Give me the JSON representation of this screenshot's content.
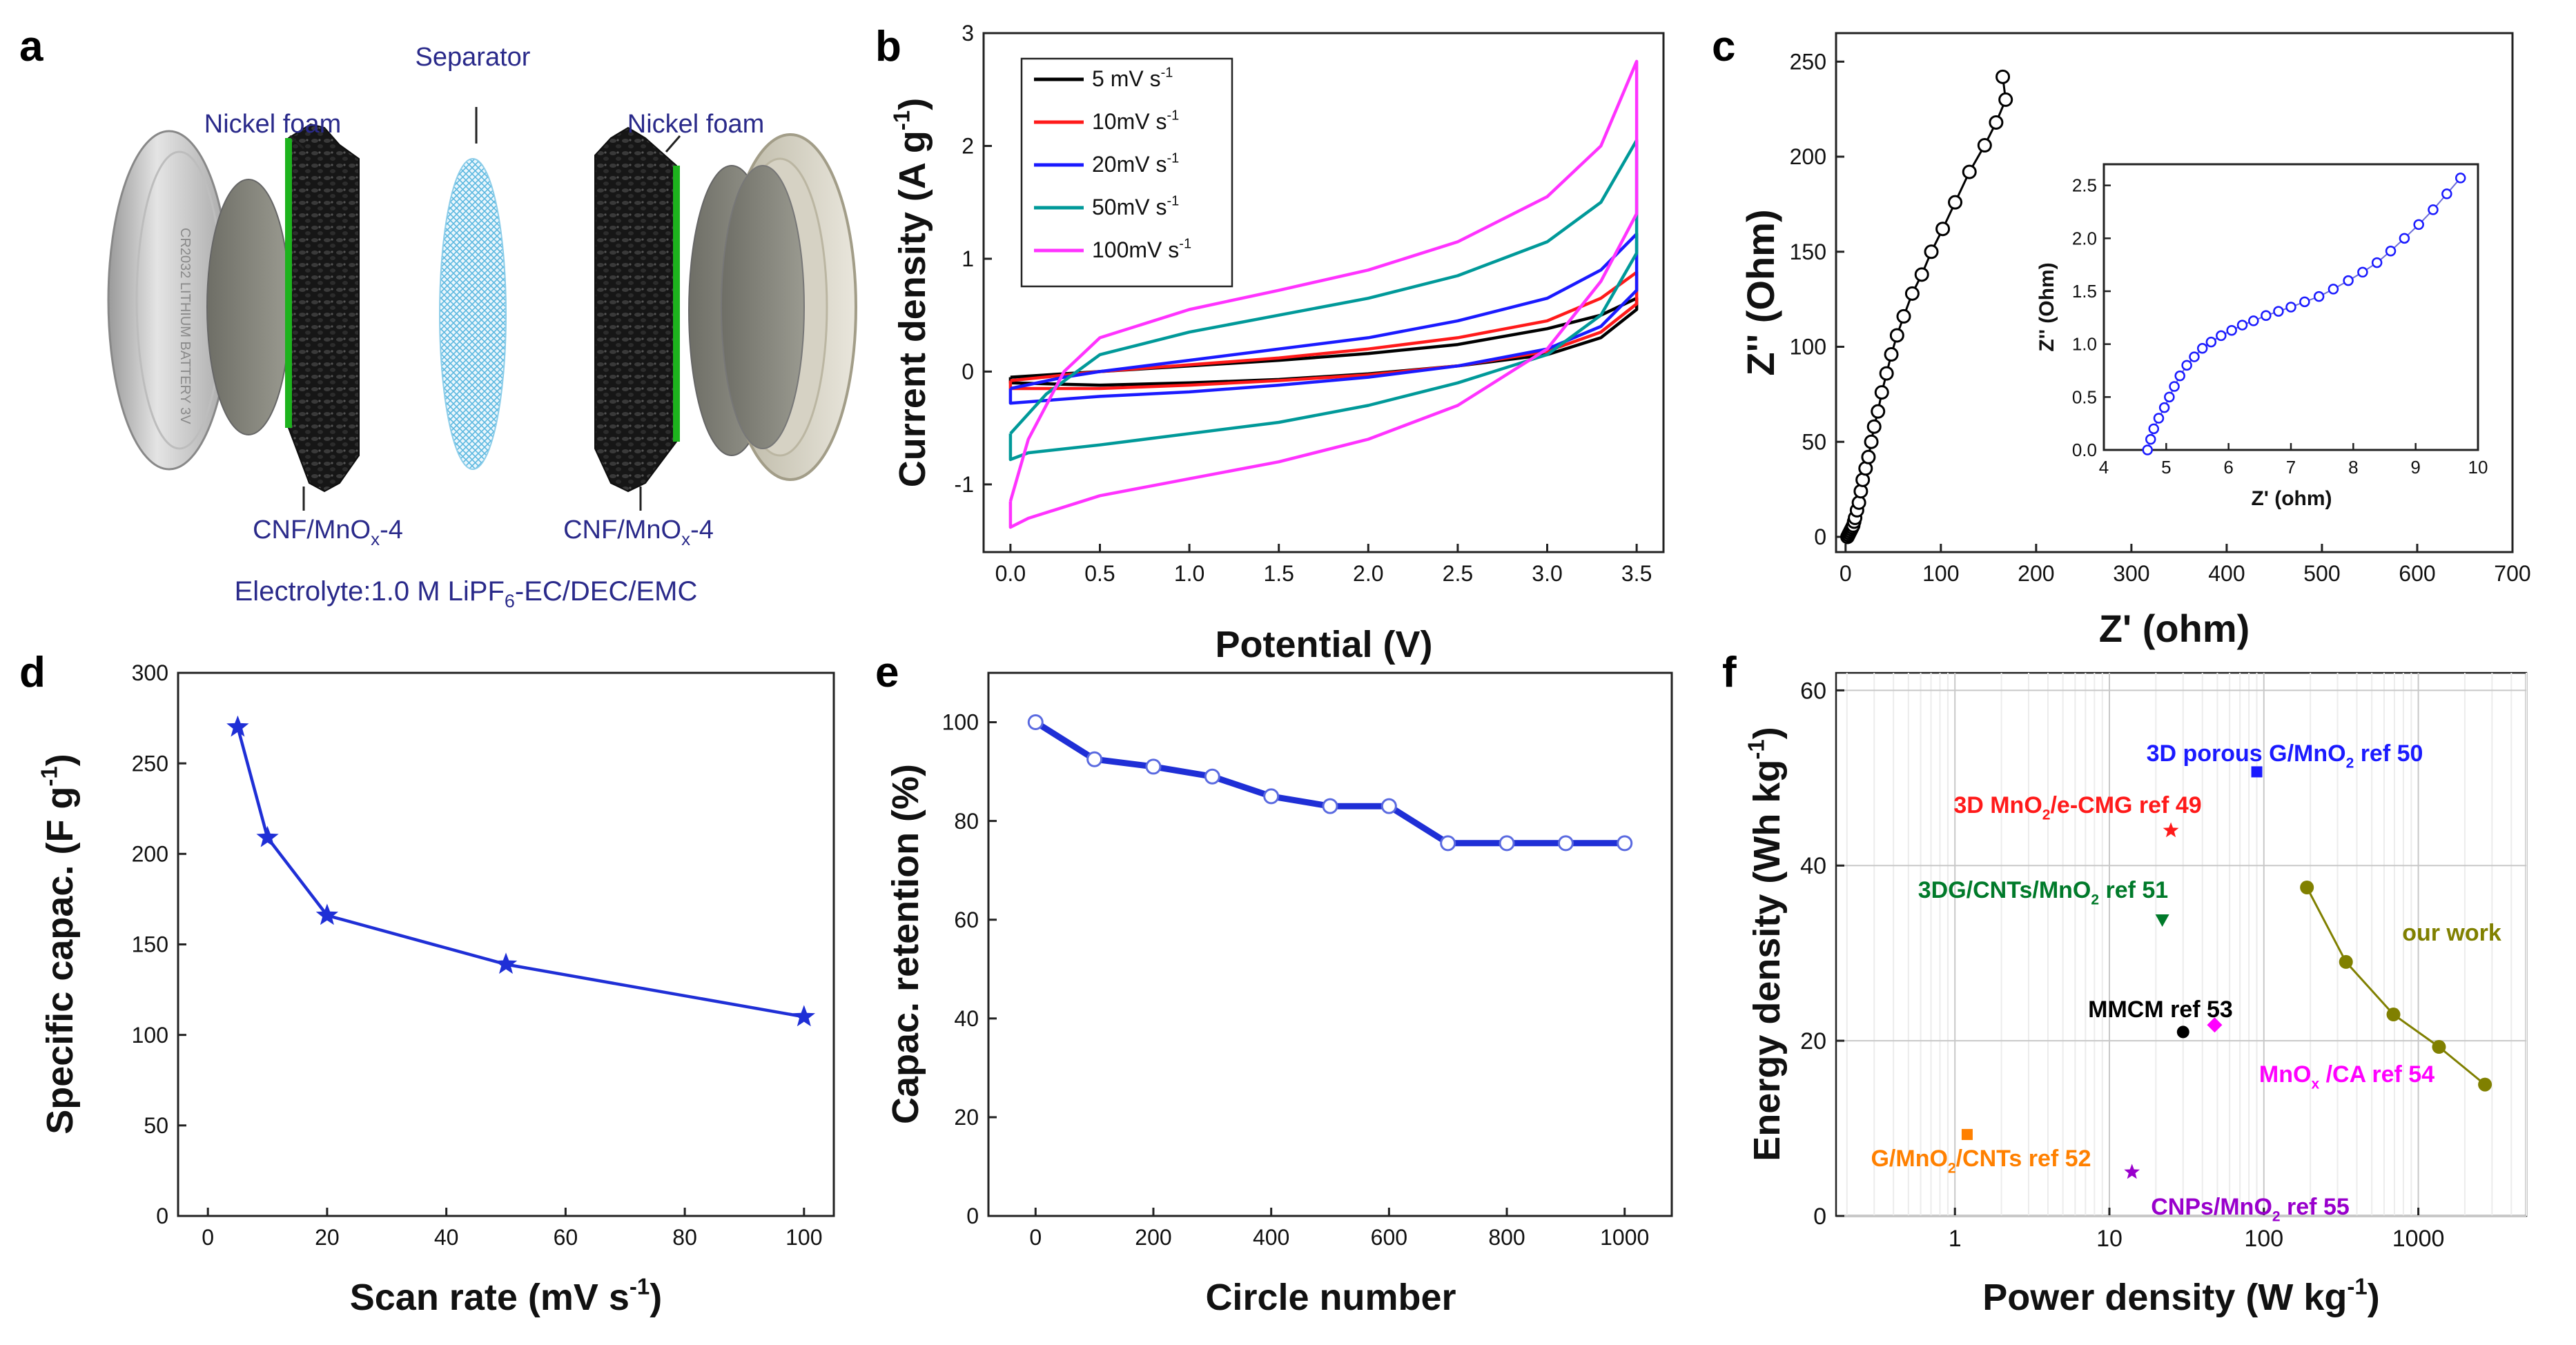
{
  "panel_labels": {
    "a": "a",
    "b": "b",
    "c": "c",
    "d": "d",
    "e": "e",
    "f": "f"
  },
  "panel_a": {
    "separator_label": "Separator",
    "nickel_foam_left": "Nickel foam",
    "nickel_foam_right": "Nickel foam",
    "electrode_left": "CNF/MnO",
    "electrode_left_sub": "x",
    "electrode_left_suffix": "-4",
    "electrode_right": "CNF/MnO",
    "electrode_right_sub": "x",
    "electrode_right_suffix": "-4",
    "electrolyte_prefix": "Electrolyte:1.0 M LiPF",
    "electrolyte_sub": "6",
    "electrolyte_suffix": "-EC/DEC/EMC",
    "coin_cell_text": "CR2032 LITHIUM BATTERY 3V"
  },
  "colors": {
    "black": "#000000",
    "red": "#ff1a1a",
    "blue": "#1a1aff",
    "teal": "#009999",
    "magenta": "#ff33ff",
    "series_blue": "#1f2fd6",
    "nickel_green": "#1db31d",
    "olive": "#808000",
    "orange": "#ff8000",
    "green": "#007a2a",
    "pink": "#ff00ff",
    "purple": "#9900cc"
  },
  "chart_data": [
    {
      "id": "b",
      "type": "line",
      "title": "",
      "xlabel": "Potential (V)",
      "ylabel": "Current density (A g",
      "ylabel_sup": "-1",
      "ylabel_close": ")",
      "xlim": [
        -0.15,
        3.65
      ],
      "ylim": [
        -1.6,
        3.0
      ],
      "xticks": [
        "0.0",
        "0.5",
        "1.0",
        "1.5",
        "2.0",
        "2.5",
        "3.0",
        "3.5"
      ],
      "yticks": [
        "-1",
        "0",
        "1",
        "2",
        "3"
      ],
      "legend_position": "top-left",
      "series": [
        {
          "name": "5 mV s",
          "sup": "-1",
          "color": "black",
          "upper": [
            [
              0,
              -0.05
            ],
            [
              0.5,
              0.0
            ],
            [
              1.0,
              0.05
            ],
            [
              1.5,
              0.1
            ],
            [
              2.0,
              0.16
            ],
            [
              2.5,
              0.24
            ],
            [
              3.0,
              0.38
            ],
            [
              3.3,
              0.5
            ],
            [
              3.5,
              0.65
            ]
          ],
          "lower": [
            [
              3.5,
              0.55
            ],
            [
              3.3,
              0.3
            ],
            [
              3.0,
              0.15
            ],
            [
              2.5,
              0.05
            ],
            [
              2.0,
              -0.02
            ],
            [
              1.5,
              -0.07
            ],
            [
              1.0,
              -0.1
            ],
            [
              0.5,
              -0.12
            ],
            [
              0,
              -0.1
            ]
          ]
        },
        {
          "name": "10mV s",
          "sup": "-1",
          "color": "red",
          "upper": [
            [
              0,
              -0.08
            ],
            [
              0.5,
              0.0
            ],
            [
              1.0,
              0.06
            ],
            [
              1.5,
              0.12
            ],
            [
              2.0,
              0.2
            ],
            [
              2.5,
              0.3
            ],
            [
              3.0,
              0.45
            ],
            [
              3.3,
              0.65
            ],
            [
              3.5,
              0.88
            ]
          ],
          "lower": [
            [
              3.5,
              0.6
            ],
            [
              3.3,
              0.35
            ],
            [
              3.0,
              0.18
            ],
            [
              2.5,
              0.05
            ],
            [
              2.0,
              -0.03
            ],
            [
              1.5,
              -0.08
            ],
            [
              1.0,
              -0.12
            ],
            [
              0.5,
              -0.15
            ],
            [
              0,
              -0.15
            ]
          ]
        },
        {
          "name": "20mV s",
          "sup": "-1",
          "color": "blue",
          "upper": [
            [
              0,
              -0.15
            ],
            [
              0.3,
              -0.05
            ],
            [
              0.5,
              0.0
            ],
            [
              1.0,
              0.1
            ],
            [
              1.5,
              0.2
            ],
            [
              2.0,
              0.3
            ],
            [
              2.5,
              0.45
            ],
            [
              3.0,
              0.65
            ],
            [
              3.3,
              0.9
            ],
            [
              3.5,
              1.22
            ]
          ],
          "lower": [
            [
              3.5,
              0.72
            ],
            [
              3.3,
              0.4
            ],
            [
              3.0,
              0.2
            ],
            [
              2.5,
              0.05
            ],
            [
              2.0,
              -0.05
            ],
            [
              1.5,
              -0.12
            ],
            [
              1.0,
              -0.18
            ],
            [
              0.5,
              -0.22
            ],
            [
              0,
              -0.28
            ]
          ]
        },
        {
          "name": "50mV s",
          "sup": "-1",
          "color": "teal",
          "upper": [
            [
              0,
              -0.55
            ],
            [
              0.2,
              -0.2
            ],
            [
              0.5,
              0.15
            ],
            [
              1.0,
              0.35
            ],
            [
              1.5,
              0.5
            ],
            [
              2.0,
              0.65
            ],
            [
              2.5,
              0.85
            ],
            [
              3.0,
              1.15
            ],
            [
              3.3,
              1.5
            ],
            [
              3.5,
              2.05
            ]
          ],
          "lower": [
            [
              3.5,
              1.05
            ],
            [
              3.3,
              0.5
            ],
            [
              3.0,
              0.15
            ],
            [
              2.5,
              -0.1
            ],
            [
              2.0,
              -0.3
            ],
            [
              1.5,
              -0.45
            ],
            [
              1.0,
              -0.55
            ],
            [
              0.5,
              -0.65
            ],
            [
              0.1,
              -0.72
            ],
            [
              0,
              -0.78
            ]
          ]
        },
        {
          "name": "100mV s",
          "sup": "-1",
          "color": "magenta",
          "upper": [
            [
              0,
              -1.15
            ],
            [
              0.1,
              -0.6
            ],
            [
              0.3,
              0.0
            ],
            [
              0.5,
              0.3
            ],
            [
              1.0,
              0.55
            ],
            [
              1.5,
              0.72
            ],
            [
              2.0,
              0.9
            ],
            [
              2.5,
              1.15
            ],
            [
              3.0,
              1.55
            ],
            [
              3.3,
              2.0
            ],
            [
              3.5,
              2.75
            ]
          ],
          "lower": [
            [
              3.5,
              1.4
            ],
            [
              3.3,
              0.8
            ],
            [
              3.0,
              0.2
            ],
            [
              2.5,
              -0.3
            ],
            [
              2.0,
              -0.6
            ],
            [
              1.5,
              -0.8
            ],
            [
              1.0,
              -0.95
            ],
            [
              0.5,
              -1.1
            ],
            [
              0.1,
              -1.3
            ],
            [
              0,
              -1.38
            ]
          ]
        }
      ]
    },
    {
      "id": "c",
      "type": "scatter",
      "xlabel": "Z' (ohm)",
      "ylabel": "Z'' (Ohm)",
      "xlim": [
        -10,
        700
      ],
      "ylim": [
        -8,
        265
      ],
      "xticks": [
        "0",
        "100",
        "200",
        "300",
        "400",
        "500",
        "600",
        "700"
      ],
      "yticks": [
        "0",
        "50",
        "100",
        "150",
        "200",
        "250"
      ],
      "color": "black",
      "points": [
        [
          2,
          0
        ],
        [
          3,
          1
        ],
        [
          4,
          2
        ],
        [
          5,
          3
        ],
        [
          6,
          4
        ],
        [
          7,
          5
        ],
        [
          8,
          6
        ],
        [
          9,
          8
        ],
        [
          10,
          10
        ],
        [
          12,
          14
        ],
        [
          14,
          18
        ],
        [
          16,
          24
        ],
        [
          18,
          30
        ],
        [
          21,
          36
        ],
        [
          24,
          42
        ],
        [
          27,
          50
        ],
        [
          30,
          58
        ],
        [
          34,
          66
        ],
        [
          38,
          76
        ],
        [
          43,
          86
        ],
        [
          48,
          96
        ],
        [
          54,
          106
        ],
        [
          61,
          116
        ],
        [
          70,
          128
        ],
        [
          80,
          138
        ],
        [
          90,
          150
        ],
        [
          102,
          162
        ],
        [
          115,
          176
        ],
        [
          130,
          192
        ],
        [
          146,
          206
        ],
        [
          158,
          218
        ],
        [
          168,
          230
        ],
        [
          165,
          242
        ]
      ],
      "inset": {
        "xlabel": "Z' (ohm)",
        "ylabel": "Z'' (Ohm)",
        "xlim": [
          4,
          10
        ],
        "ylim": [
          0,
          2.7
        ],
        "xticks": [
          "4",
          "5",
          "6",
          "7",
          "8",
          "9",
          "10"
        ],
        "yticks": [
          "0.0",
          "0.5",
          "1.0",
          "1.5",
          "2.0",
          "2.5"
        ],
        "color": "blue",
        "points": [
          [
            4.7,
            0.0
          ],
          [
            4.75,
            0.1
          ],
          [
            4.8,
            0.2
          ],
          [
            4.88,
            0.3
          ],
          [
            4.97,
            0.4
          ],
          [
            5.05,
            0.5
          ],
          [
            5.13,
            0.6
          ],
          [
            5.22,
            0.7
          ],
          [
            5.33,
            0.8
          ],
          [
            5.45,
            0.88
          ],
          [
            5.58,
            0.96
          ],
          [
            5.72,
            1.02
          ],
          [
            5.88,
            1.08
          ],
          [
            6.05,
            1.13
          ],
          [
            6.22,
            1.18
          ],
          [
            6.4,
            1.22
          ],
          [
            6.6,
            1.27
          ],
          [
            6.8,
            1.31
          ],
          [
            7.0,
            1.35
          ],
          [
            7.22,
            1.4
          ],
          [
            7.45,
            1.45
          ],
          [
            7.68,
            1.52
          ],
          [
            7.92,
            1.6
          ],
          [
            8.15,
            1.68
          ],
          [
            8.38,
            1.77
          ],
          [
            8.6,
            1.88
          ],
          [
            8.82,
            2.0
          ],
          [
            9.05,
            2.13
          ],
          [
            9.28,
            2.27
          ],
          [
            9.5,
            2.42
          ],
          [
            9.72,
            2.57
          ]
        ]
      }
    },
    {
      "id": "d",
      "type": "line",
      "xlabel": "Scan rate (mV s",
      "xlabel_sup": "-1",
      "xlabel_close": ")",
      "ylabel": "Specific capac. (F g",
      "ylabel_sup": "-1",
      "ylabel_close": ")",
      "xlim": [
        -5,
        105
      ],
      "ylim": [
        0,
        300
      ],
      "xticks": [
        "0",
        "20",
        "40",
        "60",
        "80",
        "100"
      ],
      "yticks": [
        "0",
        "50",
        "100",
        "150",
        "200",
        "250",
        "300"
      ],
      "color": "series_blue",
      "marker": "star",
      "x": [
        5,
        10,
        20,
        50,
        100
      ],
      "values": [
        270,
        209,
        166,
        139,
        110
      ]
    },
    {
      "id": "e",
      "type": "line",
      "xlabel": "Circle number",
      "ylabel": "Capac. retention (%)",
      "xlim": [
        -80,
        1080
      ],
      "ylim": [
        0,
        110
      ],
      "xticks": [
        "0",
        "200",
        "400",
        "600",
        "800",
        "1000"
      ],
      "yticks": [
        "0",
        "20",
        "40",
        "60",
        "80",
        "100"
      ],
      "color": "series_blue",
      "marker": "circle",
      "x": [
        0,
        100,
        200,
        300,
        400,
        500,
        600,
        700,
        800,
        900,
        1000
      ],
      "values": [
        100,
        92.5,
        91,
        89,
        85,
        83,
        83,
        75.5,
        75.5,
        75.5,
        75.5
      ]
    },
    {
      "id": "f",
      "type": "scatter",
      "xscale": "log",
      "xlabel": "Power density (W kg",
      "xlabel_sup": "-1",
      "xlabel_close": ")",
      "ylabel": "Energy density (Wh kg",
      "ylabel_sup": "-1",
      "ylabel_close": ")",
      "xlim": [
        0.17,
        5000
      ],
      "ylim": [
        0,
        62
      ],
      "xticks": [
        "1",
        "10",
        "100",
        "1000"
      ],
      "yticks": [
        "0",
        "20",
        "40",
        "60"
      ],
      "grid": true,
      "our_work": {
        "label": "our work",
        "color": "olive",
        "x": [
          190,
          340,
          690,
          1360,
          2700
        ],
        "values": [
          37.5,
          29,
          23,
          19.3,
          15
        ]
      },
      "references": [
        {
          "label": "3D porous G/MnO",
          "sub": "2",
          "suffix": " ref 50",
          "color": "blue",
          "marker": "square",
          "x": 90,
          "y": 50.7
        },
        {
          "label": "3D MnO",
          "sub": "2",
          "suffix": "/e-CMG ref 49",
          "color": "red",
          "marker": "star",
          "x": 25,
          "y": 44
        },
        {
          "label": "3DG/CNTs/MnO",
          "sub": "2",
          "suffix": " ref 51",
          "color": "green",
          "marker": "triangle-down",
          "x": 22,
          "y": 33.8
        },
        {
          "label": "MMCM  ref 53",
          "sub": "",
          "suffix": "",
          "color": "black",
          "marker": "circle",
          "x": 30,
          "y": 21
        },
        {
          "label": "MnO",
          "sub": "x",
          "suffix": " /CA ref 54",
          "color": "pink",
          "marker": "diamond",
          "x": 48,
          "y": 21.8
        },
        {
          "label": "G/MnO",
          "sub": "2",
          "suffix": "/CNTs  ref 52",
          "color": "orange",
          "marker": "square",
          "x": 1.2,
          "y": 9.3
        },
        {
          "label": "CNPs/MnO",
          "sub": "2",
          "suffix": " ref 55",
          "color": "purple",
          "marker": "star",
          "x": 14,
          "y": 5
        }
      ]
    }
  ]
}
